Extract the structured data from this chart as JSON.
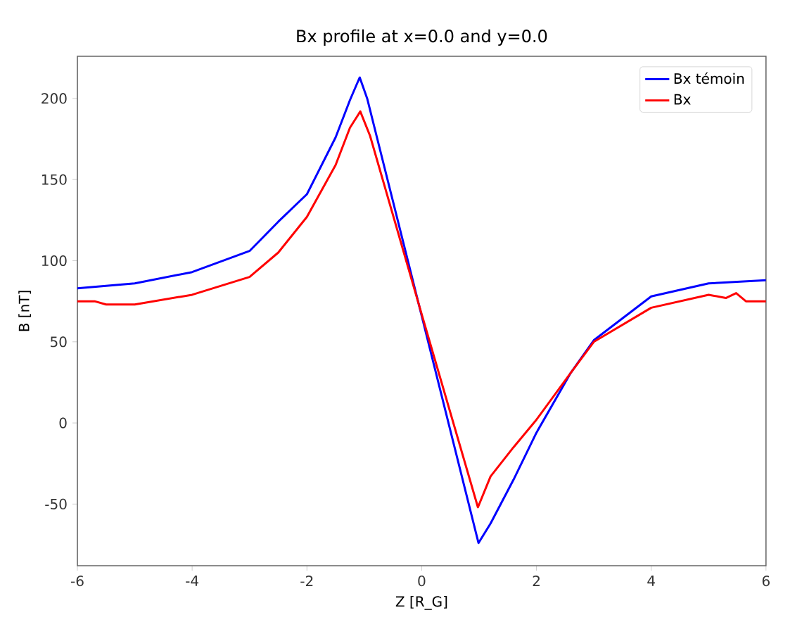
{
  "chart_data": {
    "type": "line",
    "title": "Bx profile at x=0.0 and y=0.0",
    "xlabel": "Z [R_G]",
    "ylabel": "B [nT]",
    "xlim": [
      -6,
      6
    ],
    "ylim": [
      -88,
      226
    ],
    "xticks": [
      -6,
      -4,
      -2,
      0,
      2,
      4,
      6
    ],
    "yticks": [
      -50,
      0,
      50,
      100,
      150,
      200
    ],
    "legend": "top right",
    "grid": false,
    "series": [
      {
        "name": "Bx témoin",
        "color": "#0000ff",
        "x": [
          -6,
          -5,
          -4,
          -3,
          -2.5,
          -2,
          -1.5,
          -1.25,
          -1.08,
          -0.95,
          0,
          0.99,
          1.2,
          1.6,
          2,
          2.6,
          3,
          4,
          5,
          6
        ],
        "values": [
          83,
          86,
          93,
          106,
          124,
          141,
          176,
          199,
          213,
          200,
          66,
          -74,
          -62,
          -35,
          -6,
          31,
          51,
          78,
          86,
          88
        ]
      },
      {
        "name": "Bx",
        "color": "#ff0000",
        "x": [
          -6,
          -5.7,
          -5.5,
          -5,
          -4,
          -3,
          -2.5,
          -2,
          -1.5,
          -1.25,
          -1.07,
          -0.9,
          0,
          0.98,
          1.2,
          1.6,
          2,
          2.6,
          3,
          4,
          5,
          5.3,
          5.48,
          5.65,
          6
        ],
        "values": [
          75,
          75,
          73,
          73,
          79,
          90,
          105,
          127,
          159,
          182,
          192,
          177,
          67,
          -52,
          -33,
          -15,
          2,
          31,
          50,
          71,
          79,
          77,
          80,
          75,
          75
        ]
      }
    ]
  }
}
